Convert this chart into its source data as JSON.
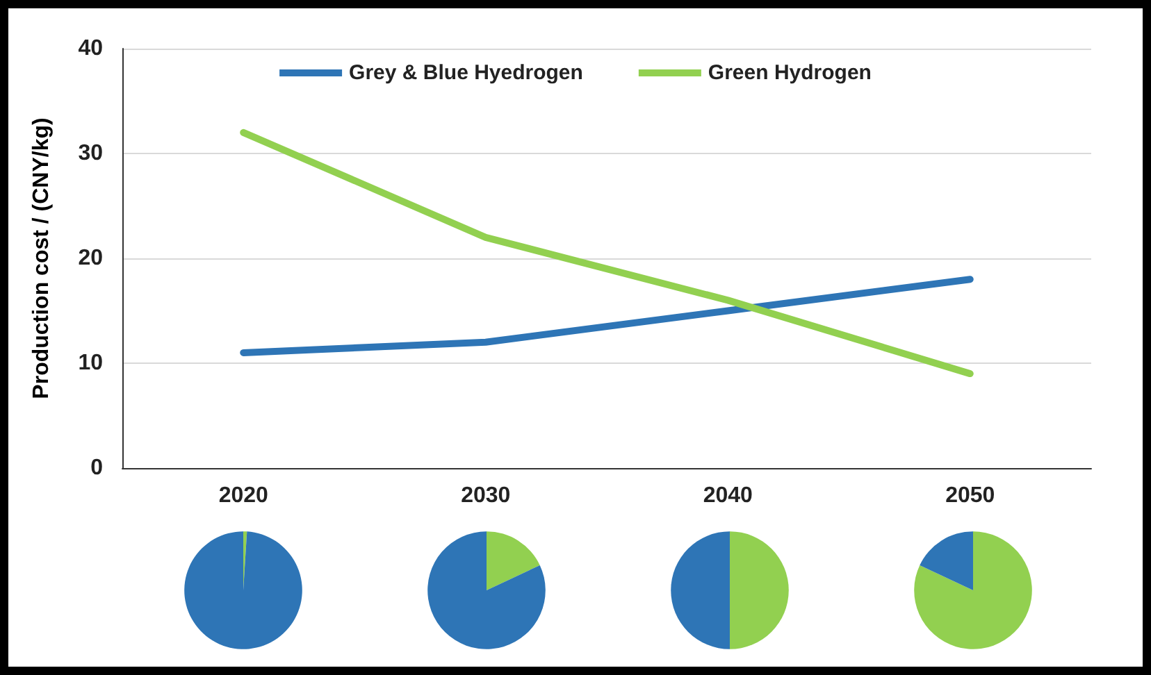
{
  "chart_data": [
    {
      "type": "line",
      "ylabel": "Production cost / (CNY/kg)",
      "categories": [
        "2020",
        "2030",
        "2040",
        "2050"
      ],
      "ylim": [
        0,
        40
      ],
      "yticks": [
        0,
        10,
        20,
        30,
        40
      ],
      "grid": "y",
      "legend": "top",
      "marker": "none",
      "line_style": "solid",
      "series": [
        {
          "name": "Grey & Blue Hyedrogen",
          "color": "#2e75b6",
          "values": [
            11,
            12,
            15,
            18
          ]
        },
        {
          "name": "Green Hydrogen",
          "color": "#92d050",
          "values": [
            32,
            22,
            16,
            9
          ]
        }
      ]
    },
    {
      "type": "pie",
      "categories": [
        null,
        null
      ],
      "values": [
        1,
        99
      ],
      "colors": [
        "#92d050",
        "#2e75b6"
      ]
    },
    {
      "type": "pie",
      "categories": [
        null,
        null
      ],
      "values": [
        18,
        82
      ],
      "colors": [
        "#92d050",
        "#2e75b6"
      ]
    },
    {
      "type": "pie",
      "categories": [
        null,
        null
      ],
      "values": [
        50,
        50
      ],
      "colors": [
        "#92d050",
        "#2e75b6"
      ]
    },
    {
      "type": "pie",
      "categories": [
        null,
        null
      ],
      "values": [
        82,
        18
      ],
      "colors": [
        "#92d050",
        "#2e75b6"
      ]
    }
  ]
}
